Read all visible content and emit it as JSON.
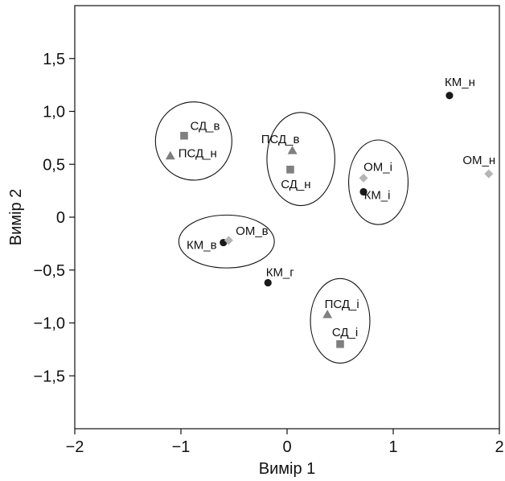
{
  "chart_data": {
    "type": "scatter",
    "title": "",
    "xlabel": "Вимір 1",
    "ylabel": "Вимір 2",
    "xlim": [
      -2,
      2
    ],
    "ylim": [
      -2,
      2
    ],
    "grid": false,
    "x_ticks": [
      -2,
      -1,
      0,
      1,
      2
    ],
    "x_tick_labels": [
      "−2",
      "−1",
      "0",
      "1",
      "2"
    ],
    "y_ticks": [
      1.5,
      1.0,
      0.5,
      0,
      -0.5,
      -1.0,
      -1.5
    ],
    "y_tick_labels": [
      "1,5",
      "1,0",
      "0,5",
      "0",
      "−0,5",
      "−1,0",
      "−1,5"
    ],
    "marker_colors": {
      "circle": "#1a1a1a",
      "square": "#7f7f7f",
      "triangle": "#7f7f7f",
      "diamond": "#b5b5b5"
    },
    "points": [
      {
        "label": "КМ_н",
        "x": 1.53,
        "y": 1.15,
        "marker": "circle"
      },
      {
        "label": "ОМ_н",
        "x": 1.9,
        "y": 0.41,
        "marker": "diamond"
      },
      {
        "label": "СД_в",
        "x": -0.97,
        "y": 0.77,
        "marker": "square"
      },
      {
        "label": "ПСД_н",
        "x": -1.1,
        "y": 0.58,
        "marker": "triangle"
      },
      {
        "label": "ПСД_в",
        "x": 0.05,
        "y": 0.63,
        "marker": "triangle"
      },
      {
        "label": "СД_н",
        "x": 0.03,
        "y": 0.45,
        "marker": "square"
      },
      {
        "label": "ОМ_і",
        "x": 0.72,
        "y": 0.37,
        "marker": "diamond"
      },
      {
        "label": "КМ_і",
        "x": 0.72,
        "y": 0.24,
        "marker": "circle"
      },
      {
        "label": "КМ_в",
        "x": -0.6,
        "y": -0.24,
        "marker": "circle"
      },
      {
        "label": "ОМ_в",
        "x": -0.55,
        "y": -0.22,
        "marker": "diamond"
      },
      {
        "label": "КМ_г",
        "x": -0.18,
        "y": -0.62,
        "marker": "circle"
      },
      {
        "label": "ПСД_і",
        "x": 0.38,
        "y": -0.92,
        "marker": "triangle"
      },
      {
        "label": "СД_і",
        "x": 0.5,
        "y": -1.2,
        "marker": "square"
      }
    ],
    "clusters": [
      {
        "members": [
          "СД_в",
          "ПСД_н"
        ],
        "cx": -0.88,
        "cy": 0.72,
        "rx": 0.36,
        "ry": 0.37
      },
      {
        "members": [
          "ПСД_в",
          "СД_н"
        ],
        "cx": 0.13,
        "cy": 0.55,
        "rx": 0.32,
        "ry": 0.44
      },
      {
        "members": [
          "ОМ_і",
          "КМ_і"
        ],
        "cx": 0.86,
        "cy": 0.33,
        "rx": 0.28,
        "ry": 0.4
      },
      {
        "members": [
          "КМ_в",
          "ОМ_в"
        ],
        "cx": -0.57,
        "cy": -0.23,
        "rx": 0.45,
        "ry": 0.25
      },
      {
        "members": [
          "ПСД_і",
          "СД_і"
        ],
        "cx": 0.5,
        "cy": -0.98,
        "rx": 0.28,
        "ry": 0.4
      }
    ]
  }
}
